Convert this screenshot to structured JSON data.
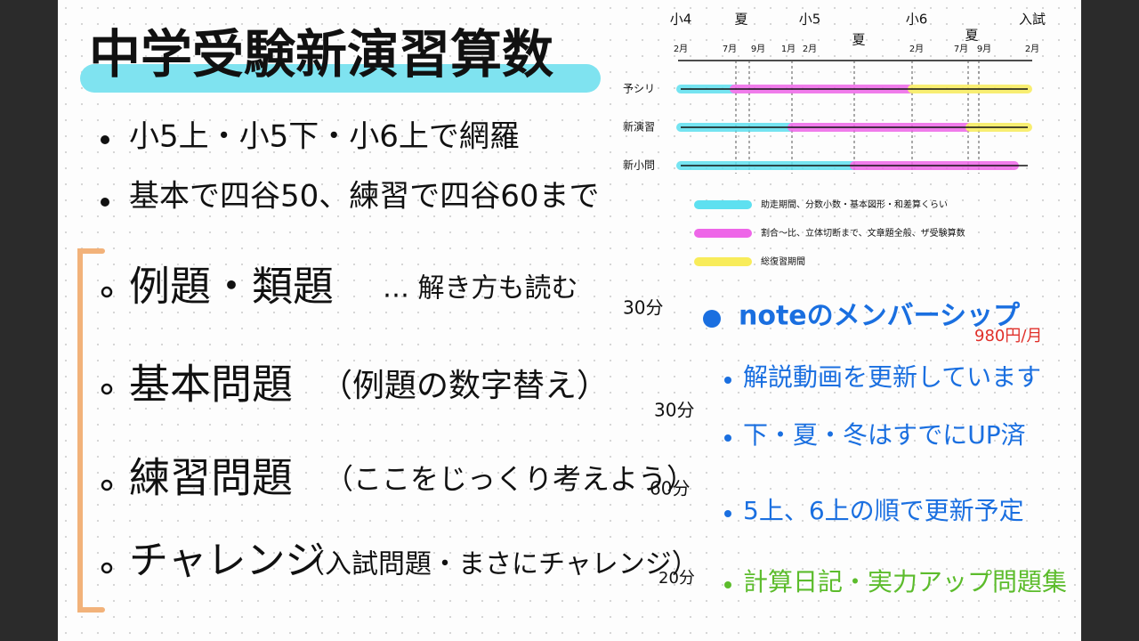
{
  "title": "中学受験新演習算数",
  "bullets": [
    "小5上・小5下・小6上で網羅",
    "基本で四谷50、練習で四谷60まで"
  ],
  "steps": [
    {
      "label": "例題・類題",
      "note": "… 解き方も読む",
      "time": "30分"
    },
    {
      "label": "基本問題",
      "note": "（例題の数字替え）",
      "time": "30分"
    },
    {
      "label": "練習問題",
      "note": "（ここをじっくり考えよう）",
      "time": "60分"
    },
    {
      "label": "チャレンジ",
      "note": "（入試問題・まさにチャレンジ）",
      "time": "20分"
    }
  ],
  "timeline": {
    "grades": [
      "小4",
      "夏",
      "小5",
      "夏",
      "小6",
      "夏",
      "入試"
    ],
    "months": [
      "2月",
      "7月",
      "9月",
      "1月",
      "2月",
      "2月",
      "7月",
      "9月",
      "2月"
    ],
    "rows": [
      "予シリ",
      "新演習",
      "新小問"
    ],
    "legend": [
      "助走期間、分数小数・基本図形・和差算くらい",
      "割合〜比、立体切断まで、文章題全般、ザ受験算数",
      "総復習期間"
    ]
  },
  "membership": {
    "heading": "noteのメンバーシップ",
    "price": "980円/月",
    "items": [
      "解説動画を更新しています",
      "下・夏・冬はすでにUP済",
      "5上、6上の順で更新予定",
      "計算日記・実力アップ問題集"
    ]
  }
}
